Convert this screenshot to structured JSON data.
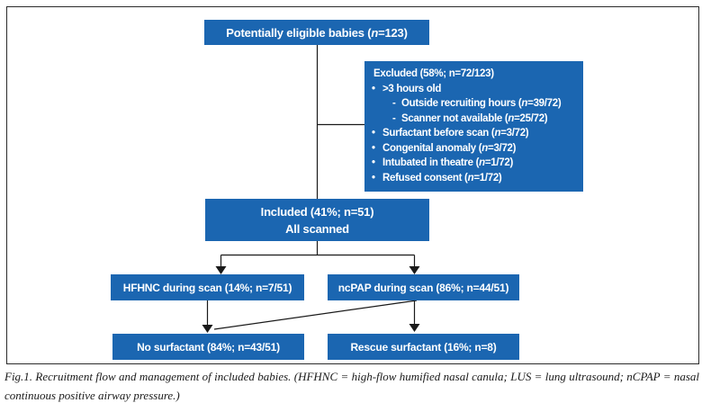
{
  "figure": {
    "boxes": {
      "eligible": {
        "label": "Potentially eligible babies (n=123)"
      },
      "excluded": {
        "title": "Excluded (58%; n=72/123)",
        "items": [
          {
            "bullet": "•",
            "text": ">3 hours old"
          },
          {
            "bullet": "-",
            "text": "Outside recruiting hours (n=39/72)"
          },
          {
            "bullet": "-",
            "text": "Scanner not available (n=25/72)"
          },
          {
            "bullet": "•",
            "text": "Surfactant before scan (n=3/72)"
          },
          {
            "bullet": "•",
            "text": "Congenital anomaly (n=3/72)"
          },
          {
            "bullet": "•",
            "text": "Intubated in theatre (n=1/72)"
          },
          {
            "bullet": "•",
            "text": "Refused consent (n=1/72)"
          }
        ]
      },
      "included": {
        "line1": "Included (41%; n=51)",
        "line2": "All scanned"
      },
      "hfhnc": {
        "label": "HFHNC during scan (14%; n=7/51)"
      },
      "ncpap": {
        "label": "ncPAP during scan (86%; n=44/51)"
      },
      "no_surfactant": {
        "label": "No surfactant (84%; n=43/51)"
      },
      "rescue_surfactant": {
        "label": "Rescue surfactant (16%; n=8)"
      }
    },
    "caption": "Fig.1. Recruitment flow and management of included babies. (HFHNC = high-flow humified nasal canula; LUS = lung ultrasound; nCPAP = nasal continuous positive airway pressure.)",
    "colors": {
      "box_blue": "#1b66b1",
      "box_text": "#ffffff",
      "line": "#1a1a1a"
    }
  }
}
